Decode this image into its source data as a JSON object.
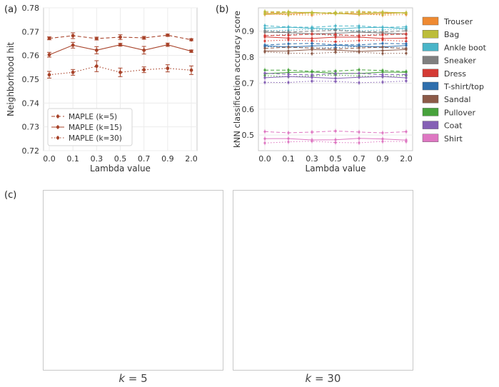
{
  "panel_labels": {
    "a": "(a)",
    "b": "(b)",
    "c": "(c)"
  },
  "chart_data": [
    {
      "type": "line",
      "panel": "(a)",
      "xlabel": "Lambda value",
      "ylabel": "Neighborhood hit",
      "categories": [
        "0.0",
        "0.1",
        "0.3",
        "0.5",
        "0.7",
        "0.9",
        "2.0"
      ],
      "ylim": [
        0.72,
        0.78
      ],
      "yticks": [
        "0.72",
        "0.73",
        "0.74",
        "0.75",
        "0.76",
        "0.77",
        "0.78"
      ],
      "grid": true,
      "legend_position": "lower-left",
      "color": "#a8432a",
      "series": [
        {
          "name": "MAPLE (k=5)",
          "style": "dashed",
          "values": [
            0.7672,
            0.7683,
            0.7671,
            0.7677,
            0.7674,
            0.7685,
            0.7666
          ],
          "errors": [
            0.0006,
            0.0012,
            0.0006,
            0.001,
            0.0006,
            0.0005,
            0.0004
          ]
        },
        {
          "name": "MAPLE (k=15)",
          "style": "solid",
          "values": [
            0.7603,
            0.7643,
            0.7622,
            0.7645,
            0.7622,
            0.7645,
            0.7618
          ],
          "errors": [
            0.001,
            0.0012,
            0.0015,
            0.0006,
            0.0016,
            0.0007,
            0.0005
          ]
        },
        {
          "name": "MAPLE (k=30)",
          "style": "dotted",
          "values": [
            0.7519,
            0.7529,
            0.7555,
            0.7529,
            0.754,
            0.7546,
            0.7538
          ],
          "errors": [
            0.0014,
            0.0012,
            0.0023,
            0.0018,
            0.0012,
            0.0015,
            0.0018
          ]
        }
      ]
    },
    {
      "type": "line",
      "panel": "(b)",
      "xlabel": "Lambda value",
      "ylabel": "kNN classification accuracy score",
      "categories": [
        "0.0",
        "0.1",
        "0.3",
        "0.5",
        "0.7",
        "0.9",
        "2.0"
      ],
      "ylim": [
        0.44,
        0.99
      ],
      "yticks": [
        "0.5",
        "0.6",
        "0.7",
        "0.8",
        "0.9"
      ],
      "grid": true,
      "legend_position": "outside-right",
      "series": [
        {
          "name": "Trouser",
          "color": "#ef8a32",
          "levels": [
            0.971,
            0.965,
            0.968
          ]
        },
        {
          "name": "Bag",
          "color": "#bcbd3a",
          "levels": [
            0.973,
            0.968,
            0.97
          ]
        },
        {
          "name": "Ankle boot",
          "color": "#49b5c8",
          "levels": [
            0.918,
            0.905,
            0.912
          ]
        },
        {
          "name": "Sneaker",
          "color": "#7f7f7f",
          "levels": [
            0.9,
            0.886,
            0.893
          ]
        },
        {
          "name": "Dress",
          "color": "#d43a34",
          "levels": [
            0.886,
            0.863,
            0.875
          ]
        },
        {
          "name": "T-shirt/top",
          "color": "#2f6fad",
          "levels": [
            0.85,
            0.838,
            0.843
          ]
        },
        {
          "name": "Sandal",
          "color": "#8c5a48",
          "levels": [
            0.835,
            0.817,
            0.826
          ]
        },
        {
          "name": "Pullover",
          "color": "#47a23c",
          "levels": [
            0.748,
            0.728,
            0.74
          ]
        },
        {
          "name": "Coat",
          "color": "#8560b5",
          "levels": [
            0.735,
            0.705,
            0.722
          ]
        },
        {
          "name": "Shirt",
          "color": "#de77c2",
          "levels": [
            0.512,
            0.473,
            0.484
          ]
        }
      ]
    }
  ],
  "embeddings": {
    "left_label_prefix": "k",
    "left_label_value": " = 5",
    "right_label_prefix": "k",
    "right_label_value": " = 30"
  }
}
